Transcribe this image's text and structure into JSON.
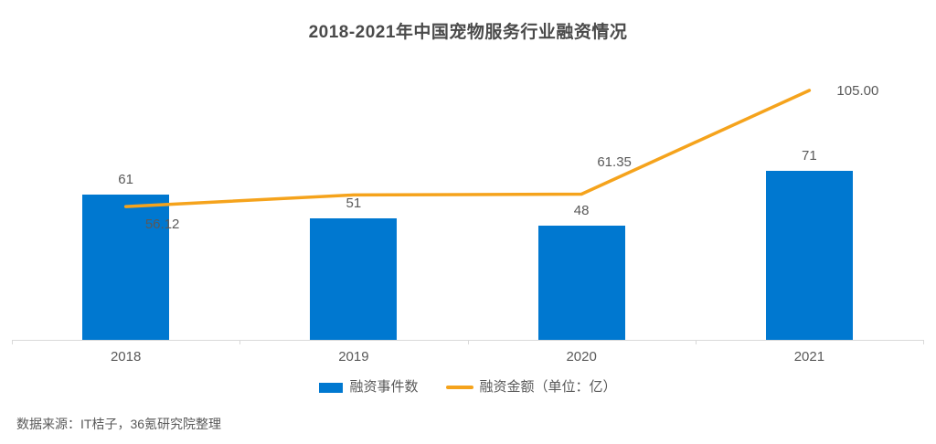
{
  "title": "2018-2021年中国宠物服务行业融资情况",
  "legend": [
    {
      "label": "融资事件数",
      "type": "bar"
    },
    {
      "label": "融资金额（单位：亿）",
      "type": "line"
    }
  ],
  "source_note": "数据来源：IT桔子，36氪研究院整理",
  "colors": {
    "bar": "#0078d0",
    "line": "#f5a31c",
    "text": "#595959",
    "title_text": "#4a4a4a",
    "axis": "#d9d9d9"
  },
  "chart_data": {
    "type": "combo",
    "title": "2018-2021年中国宠物服务行业融资情况",
    "categories": [
      "2018",
      "2019",
      "2020",
      "2021"
    ],
    "series": [
      {
        "name": "融资事件数",
        "type": "bar",
        "values": [
          61,
          51,
          48,
          71
        ],
        "labels_shown": [
          "61",
          "51",
          "48",
          "71"
        ],
        "color": "#0078d0"
      },
      {
        "name": "融资金额（单位：亿）",
        "type": "line",
        "values": [
          56.12,
          61.0,
          61.35,
          105.0
        ],
        "labels_shown": [
          "56.12",
          "",
          "61.35",
          "105.00"
        ],
        "estimated_points": [
          "2019 value not labeled on chart; 61.0 estimated from line position"
        ],
        "color": "#f5a31c"
      }
    ],
    "xlabel": "",
    "ylabel": "",
    "ylim": [
      0,
      110
    ],
    "grid": false,
    "legend_position": "bottom",
    "value_labels": true
  }
}
